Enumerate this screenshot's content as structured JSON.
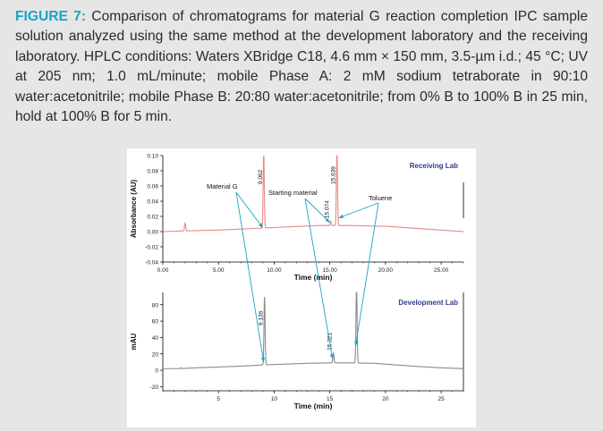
{
  "caption": {
    "label": "FIGURE 7:",
    "text": " Comparison of chromatograms for material G reaction completion IPC sample solution analyzed using the same method at the development laboratory and the receiving laboratory. HPLC conditions: Waters XBridge C18, 4.6 mm × 150 mm, 3.5-µm i.d.; 45 °C; UV at 205 nm; 1.0 mL/minute; mobile Phase A: 2 mM sodium tetraborate in 90:10 water:acetonitrile; mobile Phase B: 20:80 water:acetonitrile; from 0% B to 100% B in 25 min, hold at 100% B for 5 min."
  },
  "colors": {
    "receiving": "#e58a86",
    "development": "#8a8a8a",
    "accent": "#1ba3c4",
    "lab_label": "#2f3c8e"
  },
  "chart_data": [
    {
      "type": "line",
      "title": "Receiving Lab",
      "xlabel": "Time (min)",
      "ylabel": "Absorbance (AU)",
      "xlim": [
        0,
        27
      ],
      "ylim": [
        -0.04,
        0.1
      ],
      "xticks": [
        0,
        5,
        10,
        15,
        20,
        25
      ],
      "xtick_labels": [
        "0.00",
        "5.00",
        "10.00",
        "15.00",
        "20.00",
        "25.00"
      ],
      "yticks": [
        -0.04,
        -0.02,
        0.0,
        0.02,
        0.04,
        0.06,
        0.08,
        0.1
      ],
      "ytick_labels": [
        "-0.04",
        "-0.02",
        "0.00",
        "0.02",
        "0.04",
        "0.06",
        "0.08",
        "0.10"
      ],
      "baseline": [
        [
          0,
          0.0
        ],
        [
          2,
          0.001
        ],
        [
          5,
          0.002
        ],
        [
          8,
          0.004
        ],
        [
          11,
          0.006
        ],
        [
          14,
          0.008
        ],
        [
          17,
          0.008
        ],
        [
          20,
          0.007
        ],
        [
          23,
          0.004
        ],
        [
          25,
          0.002
        ],
        [
          27,
          0.0
        ]
      ],
      "peaks": [
        {
          "time": 2.0,
          "height": 0.01,
          "label": ""
        },
        {
          "time": 9.062,
          "height": 0.1,
          "label": "9.062"
        },
        {
          "time": 15.074,
          "height": 0.006,
          "label": "15.074"
        },
        {
          "time": 15.639,
          "height": 0.1,
          "label": "15.639"
        }
      ],
      "annotations": [
        "Material G",
        "Starting material",
        "Toluene"
      ]
    },
    {
      "type": "line",
      "title": "Development Lab",
      "xlabel": "Time (min)",
      "ylabel": "mAU",
      "xlim": [
        0,
        27
      ],
      "ylim": [
        -25,
        95
      ],
      "xticks": [
        5,
        10,
        15,
        20,
        25
      ],
      "xtick_labels": [
        "5",
        "10",
        "15",
        "20",
        "25"
      ],
      "yticks": [
        -20,
        0,
        20,
        40,
        60,
        80
      ],
      "ytick_labels": [
        "-20",
        "0",
        "20",
        "40",
        "60",
        "80"
      ],
      "baseline": [
        [
          0,
          2
        ],
        [
          1.5,
          2
        ],
        [
          3,
          3
        ],
        [
          5,
          4
        ],
        [
          7,
          5
        ],
        [
          9,
          6.5
        ],
        [
          11,
          7.5
        ],
        [
          13,
          8.5
        ],
        [
          15,
          9
        ],
        [
          17,
          9
        ],
        [
          19,
          8.5
        ],
        [
          21,
          6.5
        ],
        [
          23,
          4.5
        ],
        [
          25,
          3
        ],
        [
          27,
          2
        ]
      ],
      "peaks": [
        {
          "time": 1.6,
          "height": 1,
          "label": ""
        },
        {
          "time": 9.136,
          "height": 83,
          "label": "9.136"
        },
        {
          "time": 15.321,
          "height": 12,
          "label": "15.321"
        },
        {
          "time": 17.4,
          "height": 96,
          "label": ""
        }
      ]
    }
  ]
}
